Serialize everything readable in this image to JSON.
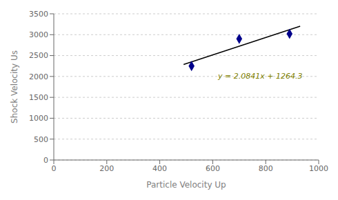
{
  "chart_data": {
    "type": "scatter",
    "xlabel": "Particle Velocity Up",
    "ylabel": "Shock Velocity Us",
    "series": [
      {
        "type": "line",
        "x": [
          490,
          930
        ],
        "values": [
          2285.509,
          3202.513
        ],
        "color": "#000000"
      },
      {
        "type": "scatter",
        "x": [
          520,
          700,
          890
        ],
        "values": [
          2250,
          2900,
          3020
        ],
        "color": "#00008B",
        "marker": "diamond"
      }
    ],
    "annotations": [
      {
        "text": "y = 2.0841x + 1264.3",
        "x": 620,
        "y": 1950,
        "color": "#808000"
      }
    ],
    "xlim": [
      0,
      1000
    ],
    "ylim": [
      0,
      3500
    ],
    "xticks": [
      0,
      200,
      400,
      600,
      800,
      1000
    ],
    "yticks": [
      0,
      500,
      1000,
      1500,
      2000,
      2500,
      3000,
      3500
    ],
    "grid": "y"
  }
}
